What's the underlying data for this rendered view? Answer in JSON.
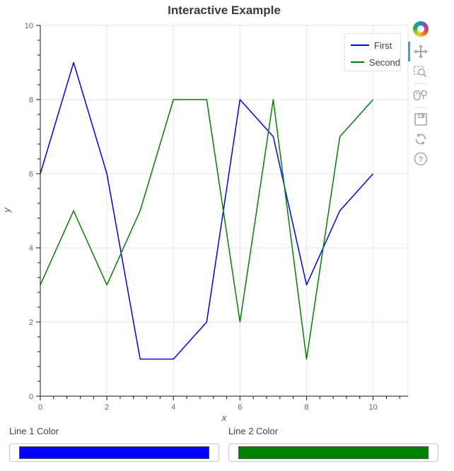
{
  "title": "Interactive Example",
  "chart_data": {
    "type": "line",
    "title": "Interactive Example",
    "xlabel": "x",
    "ylabel": "y",
    "x": [
      0,
      1,
      2,
      3,
      4,
      5,
      6,
      7,
      8,
      9,
      10
    ],
    "series": [
      {
        "name": "First",
        "color": "#0000ff",
        "values": [
          6,
          9,
          6,
          1,
          1,
          2,
          8,
          7,
          3,
          5,
          6
        ]
      },
      {
        "name": "Second",
        "color": "#008000",
        "values": [
          3,
          5,
          3,
          5,
          8,
          8,
          2,
          8,
          1,
          7,
          8
        ]
      }
    ],
    "xlim": [
      0,
      11.05
    ],
    "ylim": [
      0,
      10
    ],
    "xticks": [
      0,
      2,
      4,
      6,
      8,
      10
    ],
    "yticks": [
      0,
      2,
      4,
      6,
      8,
      10
    ],
    "minor_tick_step": 0.4,
    "grid": true,
    "legend_position": "top_right"
  },
  "legend": {
    "items": [
      {
        "label": "First",
        "color": "#0000ff"
      },
      {
        "label": "Second",
        "color": "#008000"
      }
    ]
  },
  "toolbar": {
    "logo": "bokeh-logo",
    "active_tool": "pan",
    "tools": [
      {
        "name": "pan",
        "icon": "move-icon"
      },
      {
        "name": "box-zoom",
        "icon": "box-zoom-icon"
      },
      {
        "name": "wheel-zoom",
        "icon": "wheel-zoom-icon"
      },
      {
        "name": "save",
        "icon": "save-icon"
      },
      {
        "name": "reset",
        "icon": "reset-icon"
      },
      {
        "name": "help",
        "icon": "help-icon"
      }
    ]
  },
  "widgets": [
    {
      "label": "Line 1 Color",
      "value": "#0000ff"
    },
    {
      "label": "Line 2 Color",
      "value": "#008000"
    }
  ],
  "colors": {
    "accent": "#26aae1",
    "grid": "#e5e5e5",
    "axis": "#1a1a1a",
    "tick_label": "#666666",
    "title": "#3b3b3b",
    "icon": "#a6a6a6"
  }
}
